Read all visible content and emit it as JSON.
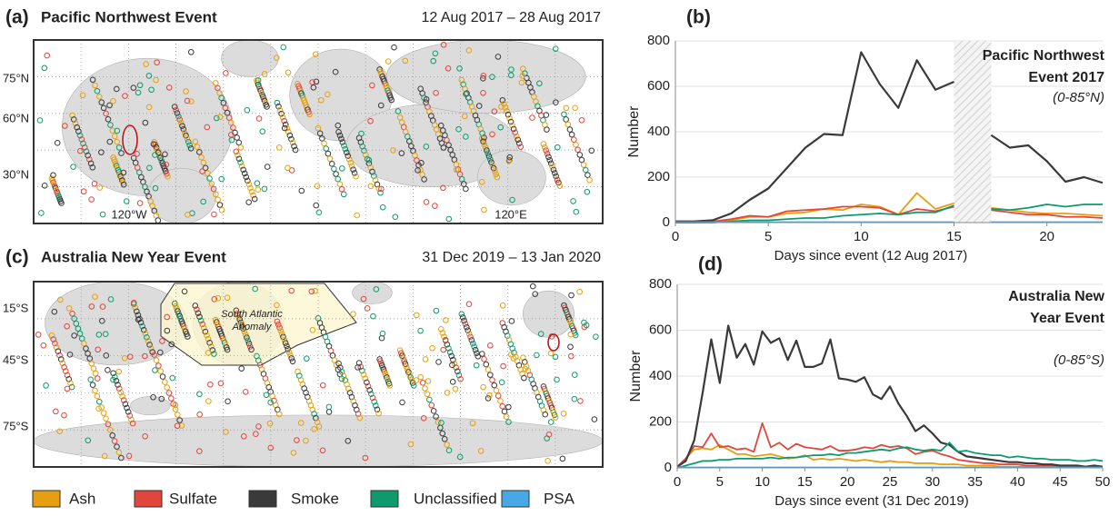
{
  "maps": [
    {
      "letter": "(a)",
      "title": "Pacific Northwest Event",
      "dates": "12 Aug 2017 – 28 Aug 2017",
      "lat_labels": [
        "75°N",
        "60°N",
        "30°N"
      ],
      "lon_labels": [
        "120°W",
        "120°E"
      ]
    },
    {
      "letter": "(c)",
      "title": "Australia New Year Event",
      "dates": "31 Dec 2019 – 13 Jan 2020",
      "lat_labels": [
        "15°S",
        "45°S",
        "75°S"
      ],
      "region_label": [
        "South Atlantic",
        "Anomaly"
      ]
    }
  ],
  "chart_data": [
    {
      "type": "line",
      "letter": "(b)",
      "annotation": [
        "Pacific Northwest",
        "Event 2017"
      ],
      "region": "(0-85°N)",
      "x_label": "Days since event (12 Aug 2017)",
      "y_label": "Number",
      "xlim": [
        0,
        23
      ],
      "ylim": [
        0,
        800
      ],
      "xticks": [
        0,
        5,
        10,
        15,
        20
      ],
      "yticks": [
        0,
        200,
        400,
        600,
        800
      ],
      "grid": true,
      "hatched_xrange": [
        15,
        17
      ],
      "x": [
        0,
        1,
        2,
        3,
        4,
        5,
        6,
        7,
        8,
        9,
        10,
        11,
        12,
        13,
        14,
        15,
        16,
        17,
        18,
        19,
        20,
        21,
        22,
        23
      ],
      "series": [
        {
          "name": "Ash",
          "color": "#e6a00f",
          "values": [
            0,
            0,
            2,
            10,
            25,
            25,
            40,
            45,
            60,
            55,
            80,
            70,
            35,
            130,
            60,
            85,
            null,
            65,
            55,
            45,
            40,
            40,
            35,
            30
          ]
        },
        {
          "name": "Sulfate",
          "color": "#e0463c",
          "values": [
            0,
            0,
            5,
            15,
            30,
            25,
            50,
            55,
            60,
            70,
            70,
            65,
            35,
            60,
            50,
            70,
            null,
            55,
            45,
            35,
            35,
            25,
            25,
            20
          ]
        },
        {
          "name": "Smoke",
          "color": "#3a3a3a",
          "values": [
            5,
            5,
            10,
            40,
            100,
            150,
            240,
            330,
            390,
            385,
            750,
            610,
            505,
            715,
            585,
            620,
            null,
            385,
            330,
            340,
            270,
            180,
            200,
            175
          ]
        },
        {
          "name": "Unclassified",
          "color": "#0f9a6e",
          "values": [
            0,
            0,
            0,
            5,
            10,
            10,
            15,
            20,
            20,
            30,
            35,
            40,
            35,
            45,
            45,
            75,
            null,
            60,
            55,
            65,
            80,
            70,
            80,
            80
          ]
        },
        {
          "name": "PSA",
          "color": "#47a8e6",
          "values": [
            2,
            2,
            2,
            2,
            2,
            2,
            2,
            2,
            2,
            2,
            2,
            2,
            2,
            2,
            2,
            2,
            null,
            2,
            2,
            2,
            2,
            2,
            2,
            2
          ]
        }
      ]
    },
    {
      "type": "line",
      "letter": "(d)",
      "annotation": [
        "Australia New",
        "Year Event"
      ],
      "region": "(0-85°S)",
      "x_label": "Days since event (31 Dec 2019)",
      "y_label": "Number",
      "xlim": [
        0,
        50
      ],
      "ylim": [
        0,
        800
      ],
      "xticks": [
        0,
        5,
        10,
        15,
        20,
        25,
        30,
        35,
        40,
        45,
        50
      ],
      "yticks": [
        0,
        200,
        400,
        600,
        800
      ],
      "grid": true,
      "x": [
        0,
        1,
        2,
        3,
        4,
        5,
        6,
        7,
        8,
        9,
        10,
        11,
        12,
        13,
        14,
        15,
        16,
        17,
        18,
        19,
        20,
        21,
        22,
        23,
        24,
        25,
        26,
        27,
        28,
        29,
        30,
        31,
        32,
        33,
        34,
        35,
        36,
        37,
        38,
        39,
        40,
        41,
        42,
        43,
        44,
        45,
        46,
        47,
        48,
        49,
        50
      ],
      "series": [
        {
          "name": "Ash",
          "color": "#e6a00f",
          "values": [
            5,
            40,
            80,
            85,
            80,
            100,
            80,
            60,
            60,
            50,
            55,
            60,
            50,
            40,
            45,
            55,
            35,
            40,
            35,
            40,
            35,
            30,
            35,
            30,
            25,
            30,
            25,
            25,
            20,
            20,
            20,
            15,
            15,
            15,
            10,
            10,
            10,
            10,
            5,
            5,
            5,
            5,
            5,
            5,
            5,
            5,
            5,
            5,
            5,
            5,
            5
          ]
        },
        {
          "name": "Sulfate",
          "color": "#e0463c",
          "values": [
            5,
            40,
            95,
            90,
            150,
            90,
            95,
            80,
            85,
            70,
            195,
            90,
            110,
            80,
            105,
            90,
            85,
            80,
            95,
            75,
            75,
            80,
            90,
            85,
            100,
            90,
            95,
            85,
            60,
            70,
            75,
            60,
            50,
            35,
            30,
            25,
            20,
            20,
            15,
            15,
            15,
            10,
            10,
            10,
            10,
            10,
            10,
            10,
            5,
            5,
            5
          ]
        },
        {
          "name": "Smoke",
          "color": "#3a3a3a",
          "values": [
            5,
            30,
            120,
            330,
            560,
            370,
            620,
            480,
            540,
            450,
            595,
            545,
            565,
            470,
            555,
            440,
            440,
            455,
            560,
            390,
            385,
            375,
            395,
            320,
            300,
            355,
            280,
            225,
            160,
            185,
            150,
            110,
            100,
            70,
            50,
            45,
            40,
            35,
            30,
            25,
            25,
            20,
            20,
            15,
            15,
            10,
            10,
            10,
            5,
            10,
            5
          ]
        },
        {
          "name": "Unclassified",
          "color": "#0f9a6e",
          "values": [
            0,
            10,
            20,
            30,
            30,
            35,
            35,
            40,
            40,
            40,
            40,
            45,
            40,
            45,
            45,
            50,
            55,
            55,
            60,
            55,
            65,
            65,
            70,
            75,
            80,
            75,
            85,
            90,
            80,
            75,
            80,
            75,
            110,
            70,
            75,
            65,
            60,
            55,
            55,
            45,
            50,
            45,
            40,
            40,
            35,
            35,
            35,
            30,
            30,
            35,
            30
          ]
        },
        {
          "name": "PSA",
          "color": "#47a8e6",
          "values": [
            2,
            2,
            2,
            2,
            2,
            2,
            2,
            2,
            2,
            2,
            2,
            2,
            2,
            2,
            2,
            2,
            2,
            2,
            2,
            2,
            2,
            2,
            2,
            2,
            2,
            2,
            2,
            2,
            2,
            2,
            2,
            2,
            2,
            2,
            2,
            2,
            2,
            2,
            2,
            2,
            2,
            2,
            2,
            2,
            2,
            2,
            2,
            2,
            2,
            2,
            2
          ]
        }
      ]
    }
  ]
}
